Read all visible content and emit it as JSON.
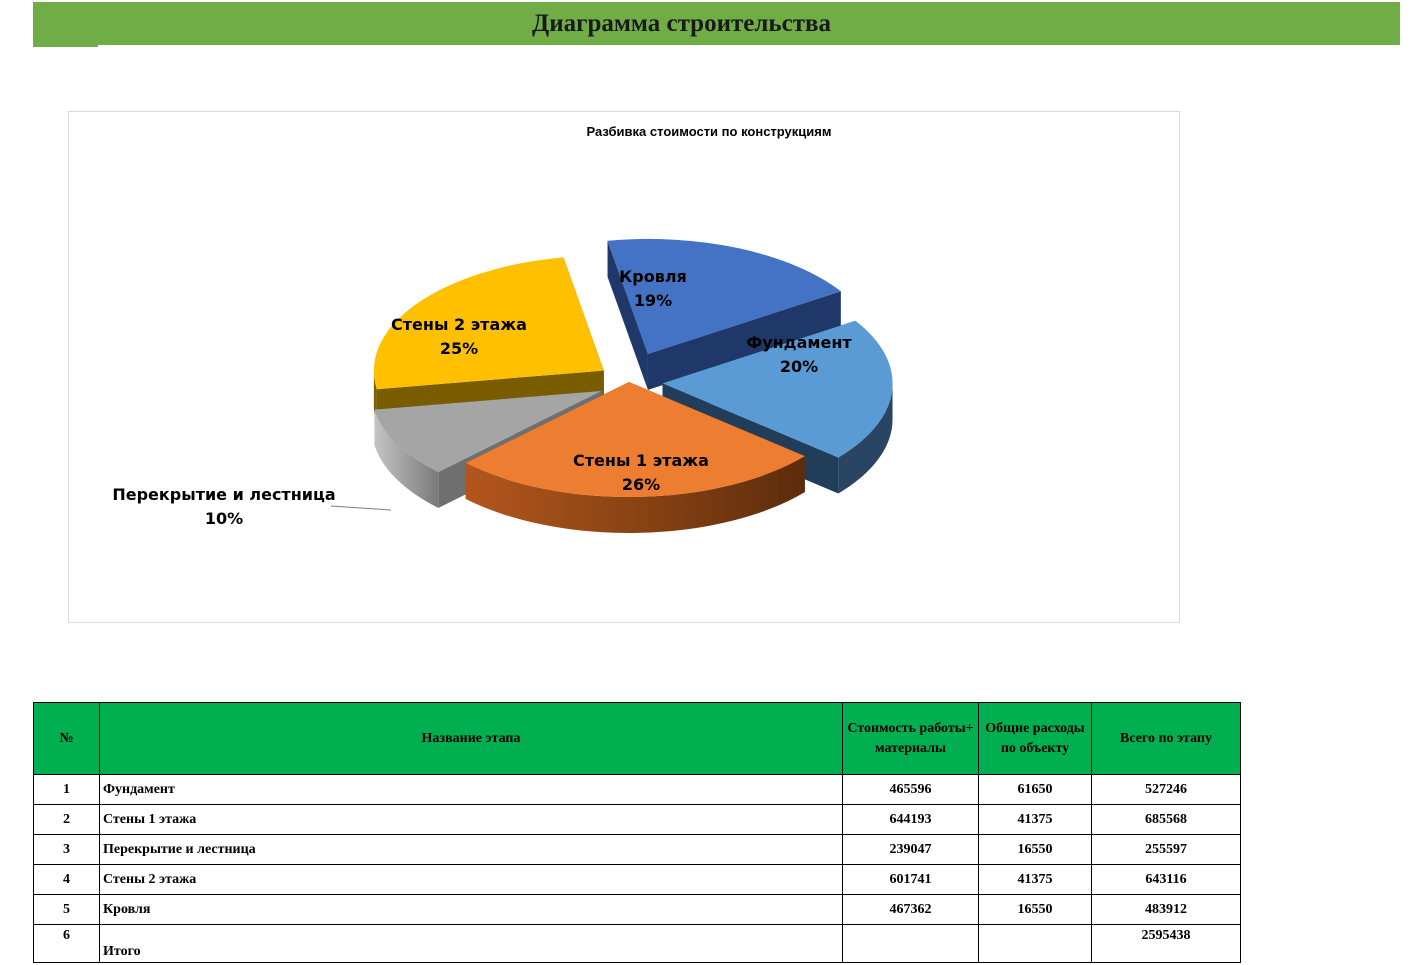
{
  "page": {
    "title": "Диаграмма строительства"
  },
  "chart_data": {
    "type": "pie",
    "title": "Разбивка стоимости по конструкциям",
    "style": "3d-exploded",
    "slices": [
      {
        "label": "Фундамент",
        "value": 527246,
        "percent": "20%",
        "color": "#5b9bd5"
      },
      {
        "label": "Стены 1 этажа",
        "value": 685568,
        "percent": "26%",
        "color": "#ed7d31"
      },
      {
        "label": "Перекрытие и лестница",
        "value": 255597,
        "percent": "10%",
        "color": "#a5a5a5"
      },
      {
        "label": "Стены 2 этажа",
        "value": 643116,
        "percent": "25%",
        "color": "#ffc000"
      },
      {
        "label": "Кровля",
        "value": 483912,
        "percent": "19%",
        "color": "#4472c4"
      }
    ]
  },
  "table": {
    "headers": [
      "№",
      "Название этапа",
      "Стоимость работы+ материалы",
      "Общие расходы по объекту",
      "Всего по этапу"
    ],
    "rows": [
      [
        "1",
        "Фундамент",
        "465596",
        "61650",
        "527246"
      ],
      [
        "2",
        "Стены 1 этажа",
        "644193",
        "41375",
        "685568"
      ],
      [
        "3",
        "Перекрытие и лестница",
        "239047",
        "16550",
        "255597"
      ],
      [
        "4",
        "Стены 2 этажа",
        "601741",
        "41375",
        "643116"
      ],
      [
        "5",
        "Кровля",
        "467362",
        "16550",
        "483912"
      ],
      [
        "6",
        "Итого",
        "",
        "",
        "2595438"
      ]
    ]
  }
}
